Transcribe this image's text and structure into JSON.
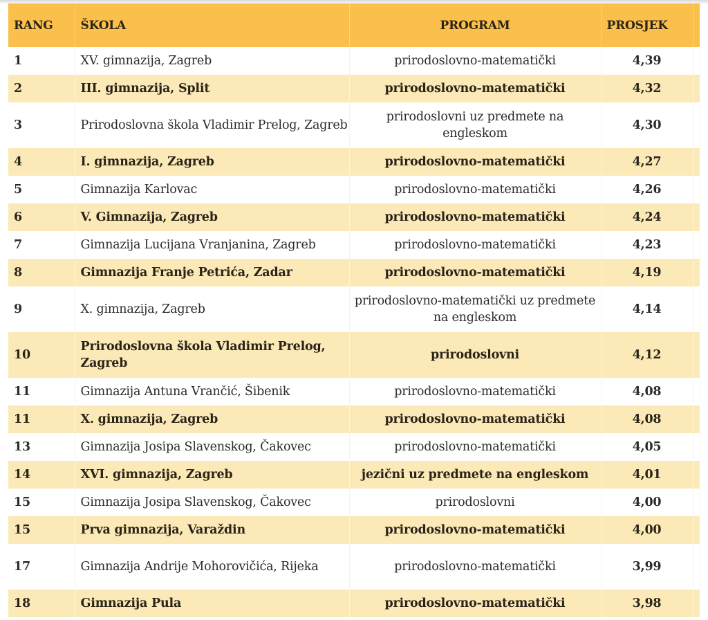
{
  "table": {
    "headers": {
      "rang": "RANG",
      "skola": "ŠKOLA",
      "program": "PROGRAM",
      "prosjek": "PROSJEK"
    },
    "colors": {
      "header_bg": "#fbbf4b",
      "stripe_bg": "#fbe9b7",
      "row_bg": "#ffffff"
    },
    "rows": [
      {
        "rang": "1",
        "skola": "XV. gimnazija, Zagreb",
        "program": "prirodoslovno-matematički",
        "prosjek": "4,39"
      },
      {
        "rang": "2",
        "skola": "III. gimnazija, Split",
        "program": "prirodoslovno-matematički",
        "prosjek": "4,32"
      },
      {
        "rang": "3",
        "skola": "Prirodoslovna škola Vladimir Prelog, Zagreb",
        "program": "prirodoslovni uz predmete na engleskom",
        "prosjek": "4,30"
      },
      {
        "rang": "4",
        "skola": "I. gimnazija, Zagreb",
        "program": "prirodoslovno-matematički",
        "prosjek": "4,27"
      },
      {
        "rang": "5",
        "skola": "Gimnazija Karlovac",
        "program": "prirodoslovno-matematički",
        "prosjek": "4,26"
      },
      {
        "rang": "6",
        "skola": "V. Gimnazija, Zagreb",
        "program": "prirodoslovno-matematički",
        "prosjek": "4,24"
      },
      {
        "rang": "7",
        "skola": "Gimnazija Lucijana Vranjanina, Zagreb",
        "program": "prirodoslovno-matematički",
        "prosjek": "4,23"
      },
      {
        "rang": "8",
        "skola": "Gimnazija Franje Petrića, Zadar",
        "program": "prirodoslovno-matematički",
        "prosjek": "4,19"
      },
      {
        "rang": "9",
        "skola": "X. gimnazija, Zagreb",
        "program": "prirodoslovno-matematički uz predmete na engleskom",
        "prosjek": "4,14"
      },
      {
        "rang": "10",
        "skola": "Prirodoslovna škola Vladimir Prelog, Zagreb",
        "program": "prirodoslovni",
        "prosjek": "4,12"
      },
      {
        "rang": "11",
        "skola": "Gimnazija Antuna Vrančić, Šibenik",
        "program": "prirodoslovno-matematički",
        "prosjek": "4,08"
      },
      {
        "rang": "11",
        "skola": "X. gimnazija, Zagreb",
        "program": "prirodoslovno-matematički",
        "prosjek": "4,08"
      },
      {
        "rang": "13",
        "skola": "Gimnazija Josipa Slavenskog, Čakovec",
        "program": "prirodoslovno-matematički",
        "prosjek": "4,05"
      },
      {
        "rang": "14",
        "skola": "XVI. gimnazija, Zagreb",
        "program": "jezični uz predmete na engleskom",
        "prosjek": "4,01"
      },
      {
        "rang": "15",
        "skola": "Gimnazija Josipa Slavenskog, Čakovec",
        "program": "prirodoslovni",
        "prosjek": "4,00"
      },
      {
        "rang": "15",
        "skola": "Prva gimnazija, Varaždin",
        "program": "prirodoslovno-matematički",
        "prosjek": "4,00"
      },
      {
        "rang": "17",
        "skola": "Gimnazija Andrije Mohorovičića, Rijeka",
        "program": "prirodoslovno-matematički",
        "prosjek": "3,99"
      },
      {
        "rang": "18",
        "skola": "Gimnazija Pula",
        "program": "prirodoslovno-matematički",
        "prosjek": "3,98"
      }
    ]
  }
}
